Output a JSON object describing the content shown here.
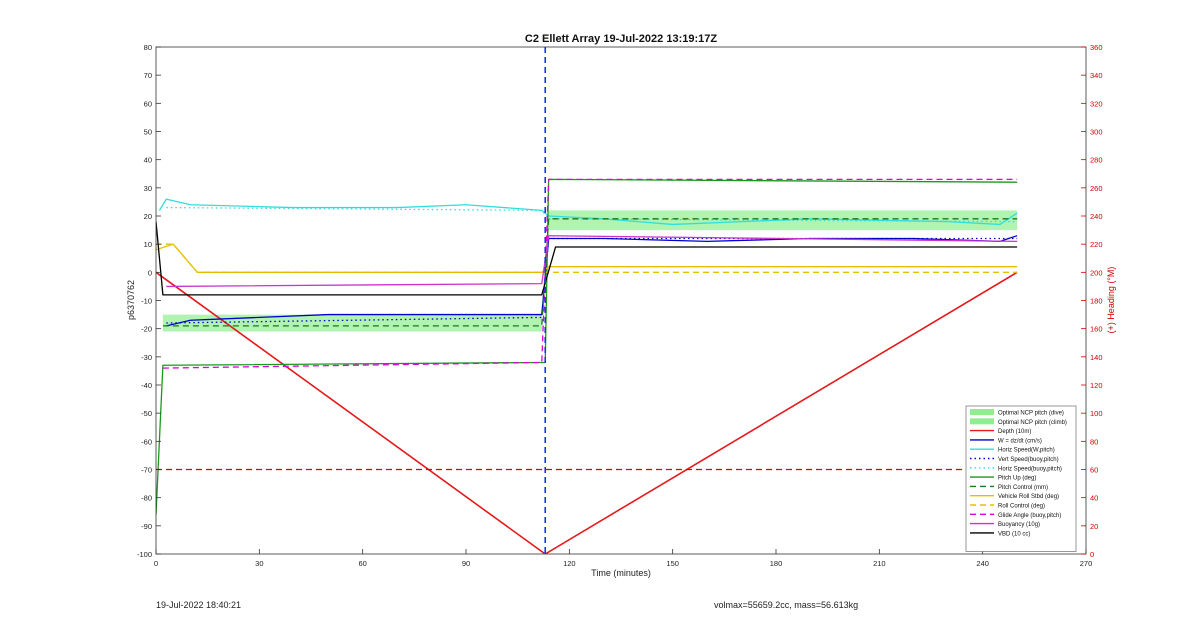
{
  "chart_data": {
    "type": "line",
    "title": "C2 Ellett Array 19-Jul-2022 13:19:17Z",
    "xlabel": "Time (minutes)",
    "ylabel": "p6370762",
    "y2label": "(+) Heading (°M)",
    "xlim": [
      0,
      270
    ],
    "ylim": [
      -100,
      80
    ],
    "y2lim": [
      0,
      360
    ],
    "xticks": [
      0,
      30,
      60,
      90,
      120,
      150,
      180,
      210,
      240,
      270
    ],
    "yticks": [
      -100,
      -90,
      -80,
      -70,
      -60,
      -50,
      -40,
      -30,
      -20,
      -10,
      0,
      10,
      20,
      30,
      40,
      50,
      60,
      70,
      80
    ],
    "y2ticks": [
      0,
      20,
      40,
      60,
      80,
      100,
      120,
      140,
      160,
      180,
      200,
      220,
      240,
      260,
      280,
      300,
      320,
      340,
      360
    ],
    "grid": false,
    "legend_position": "bottom-right",
    "apogee_time": 113,
    "series": [
      {
        "name": "Optimal NCP pitch (dive)",
        "style": "band",
        "color": "#90ee90",
        "x": [
          2,
          112
        ],
        "low": [
          -21,
          -21
        ],
        "high": [
          -15,
          -15
        ]
      },
      {
        "name": "Optimal NCP pitch (climb)",
        "style": "band",
        "color": "#90ee90",
        "x": [
          114,
          250
        ],
        "low": [
          15,
          15
        ],
        "high": [
          22,
          22
        ]
      },
      {
        "name": "Depth (10m)",
        "style": "solid",
        "color": "#e41a1c",
        "x": [
          0,
          113,
          250
        ],
        "y": [
          0,
          -100,
          0
        ]
      },
      {
        "name": "W = dz/dt (cm/s)",
        "style": "solid",
        "color": "#0000cc",
        "x": [
          3,
          10,
          30,
          50,
          70,
          90,
          112,
          114,
          130,
          160,
          190,
          220,
          245,
          250
        ],
        "y": [
          -19,
          -17,
          -16,
          -15,
          -15,
          -15,
          -15,
          12,
          12,
          11,
          12,
          12,
          11,
          13
        ]
      },
      {
        "name": "Horiz Speed(W,pitch)",
        "style": "solid",
        "color": "#33dddd",
        "x": [
          1,
          3,
          10,
          40,
          70,
          90,
          112,
          114,
          130,
          150,
          190,
          230,
          245,
          250
        ],
        "y": [
          22,
          26,
          24,
          23,
          23,
          24,
          22,
          20,
          19,
          17,
          19,
          18,
          17,
          21
        ]
      },
      {
        "name": "Vert Speed(buoy,pitch)",
        "style": "dotted",
        "color": "#0000cc",
        "x": [
          3,
          112,
          114,
          250
        ],
        "y": [
          -18,
          -16,
          12,
          12
        ]
      },
      {
        "name": "Horiz Speed(buoy,pitch)",
        "style": "dotted",
        "color": "#33dddd",
        "x": [
          3,
          112,
          114,
          250
        ],
        "y": [
          23,
          22,
          19,
          18
        ]
      },
      {
        "name": "Pitch Up (deg)",
        "style": "solid",
        "color": "#1a9a1a",
        "x": [
          0,
          2,
          112,
          113,
          114,
          250
        ],
        "y": [
          -86,
          -33,
          -32,
          -32,
          33,
          32
        ]
      },
      {
        "name": "Pitch Control (mm)",
        "style": "dashed",
        "color": "#1a7a1a",
        "x": [
          2,
          112,
          114,
          250
        ],
        "y": [
          -19,
          -19,
          19,
          19
        ]
      },
      {
        "name": "Vehicle Roll Stbd (deg)",
        "style": "solid",
        "color": "#e6c000",
        "x": [
          0,
          5,
          12,
          112,
          114,
          250
        ],
        "y": [
          8,
          10,
          0,
          0,
          2,
          2
        ]
      },
      {
        "name": "Roll Control (deg)",
        "style": "dashed",
        "color": "#e6c000",
        "x": [
          0,
          5,
          12,
          112,
          114,
          250
        ],
        "y": [
          10,
          10,
          0,
          0,
          0,
          0
        ]
      },
      {
        "name": "Glide Angle (buoy,pitch)",
        "style": "dashed",
        "color": "#dd00dd",
        "x": [
          2,
          112,
          114,
          250
        ],
        "y": [
          -34,
          -32,
          33,
          33
        ]
      },
      {
        "name": "Buoyancy (10g)",
        "style": "solid",
        "color": "#cc33cc",
        "x": [
          3,
          112,
          114,
          250
        ],
        "y": [
          -5,
          -4,
          13,
          11
        ]
      },
      {
        "name": "VBD (10 cc)",
        "style": "solid",
        "color": "#000000",
        "x": [
          0,
          2,
          112,
          116,
          250
        ],
        "y": [
          18,
          -8,
          -8,
          9,
          9
        ]
      },
      {
        "name": "Heading",
        "axis": "y2",
        "style": "dashed",
        "color": "#dd0000",
        "x": [
          0,
          250
        ],
        "y": [
          60,
          60
        ]
      }
    ]
  },
  "footer": {
    "timestamp": "19-Jul-2022 18:40:21",
    "summary": "volmax=55659.2cc, mass=56.613kg"
  }
}
